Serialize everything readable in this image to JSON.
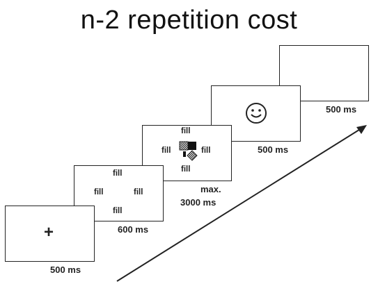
{
  "title": "n-2 repetition cost",
  "screens": [
    {
      "name": "fixation",
      "content": "+",
      "duration": "500 ms"
    },
    {
      "name": "cue",
      "fill_labels": [
        "fill",
        "fill",
        "fill",
        "fill"
      ],
      "duration": "600 ms"
    },
    {
      "name": "target",
      "fill_labels": [
        "fill",
        "fill",
        "fill",
        "fill"
      ],
      "duration_line1": "max.",
      "duration_line2": "3000 ms"
    },
    {
      "name": "feedback",
      "content": "smiley-icon",
      "duration": "500 ms"
    },
    {
      "name": "blank",
      "duration": "500 ms"
    }
  ],
  "colors": {
    "stroke": "#222222",
    "background": "#ffffff"
  }
}
